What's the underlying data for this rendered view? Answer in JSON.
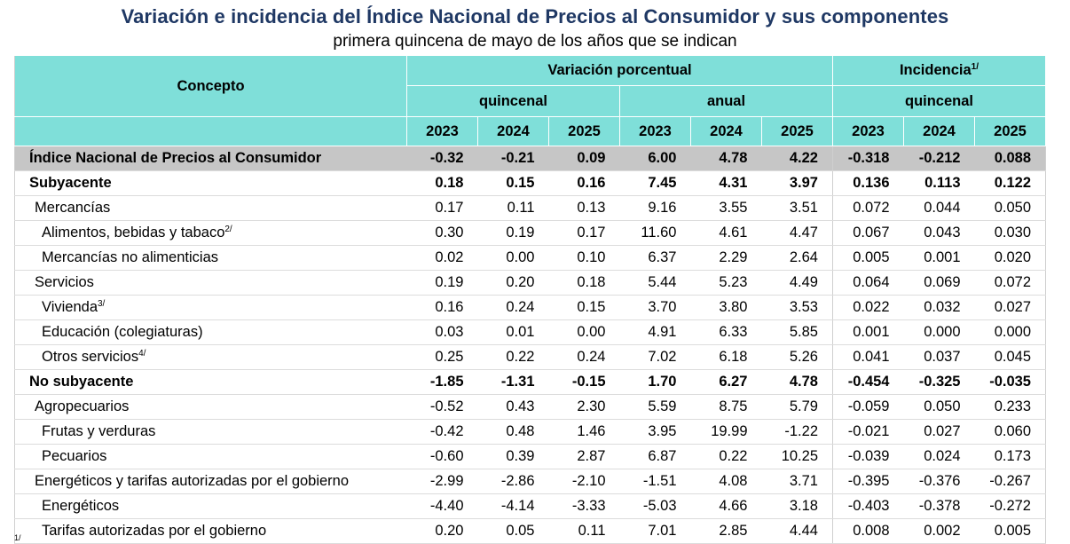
{
  "title": "Variación e incidencia del Índice Nacional de Precios al Consumidor y sus componentes",
  "subtitle": "primera quincena de mayo de los años que se indican",
  "header": {
    "concepto": "Concepto",
    "variacion": "Variación porcentual",
    "incidencia": "Incidencia",
    "incidencia_note": "1/",
    "quincenal": "quincenal",
    "anual": "anual",
    "quincenal_inc": "quincenal",
    "years": [
      "2023",
      "2024",
      "2025",
      "2023",
      "2024",
      "2025",
      "2023",
      "2024",
      "2025"
    ]
  },
  "rows": [
    {
      "label": "Índice Nacional de Precios al Consumidor",
      "note": "",
      "values": [
        "-0.32",
        "-0.21",
        "0.09",
        "6.00",
        "4.78",
        "4.22",
        "-0.318",
        "-0.212",
        "0.088"
      ]
    },
    {
      "label": "Subyacente",
      "note": "",
      "values": [
        "0.18",
        "0.15",
        "0.16",
        "7.45",
        "4.31",
        "3.97",
        "0.136",
        "0.113",
        "0.122"
      ]
    },
    {
      "label": "Mercancías",
      "note": "",
      "values": [
        "0.17",
        "0.11",
        "0.13",
        "9.16",
        "3.55",
        "3.51",
        "0.072",
        "0.044",
        "0.050"
      ]
    },
    {
      "label": "Alimentos, bebidas y tabaco",
      "note": "2/",
      "values": [
        "0.30",
        "0.19",
        "0.17",
        "11.60",
        "4.61",
        "4.47",
        "0.067",
        "0.043",
        "0.030"
      ]
    },
    {
      "label": "Mercancías no alimenticias",
      "note": "",
      "values": [
        "0.02",
        "0.00",
        "0.10",
        "6.37",
        "2.29",
        "2.64",
        "0.005",
        "0.001",
        "0.020"
      ]
    },
    {
      "label": "Servicios",
      "note": "",
      "values": [
        "0.19",
        "0.20",
        "0.18",
        "5.44",
        "5.23",
        "4.49",
        "0.064",
        "0.069",
        "0.072"
      ]
    },
    {
      "label": "Vivienda",
      "note": "3/",
      "values": [
        "0.16",
        "0.24",
        "0.15",
        "3.70",
        "3.80",
        "3.53",
        "0.022",
        "0.032",
        "0.027"
      ]
    },
    {
      "label": "Educación (colegiaturas)",
      "note": "",
      "values": [
        "0.03",
        "0.01",
        "0.00",
        "4.91",
        "6.33",
        "5.85",
        "0.001",
        "0.000",
        "0.000"
      ]
    },
    {
      "label": "Otros servicios",
      "note": "4/",
      "values": [
        "0.25",
        "0.22",
        "0.24",
        "7.02",
        "6.18",
        "5.26",
        "0.041",
        "0.037",
        "0.045"
      ]
    },
    {
      "label": "No subyacente",
      "note": "",
      "values": [
        "-1.85",
        "-1.31",
        "-0.15",
        "1.70",
        "6.27",
        "4.78",
        "-0.454",
        "-0.325",
        "-0.035"
      ]
    },
    {
      "label": "Agropecuarios",
      "note": "",
      "values": [
        "-0.52",
        "0.43",
        "2.30",
        "5.59",
        "8.75",
        "5.79",
        "-0.059",
        "0.050",
        "0.233"
      ]
    },
    {
      "label": "Frutas y verduras",
      "note": "",
      "values": [
        "-0.42",
        "0.48",
        "1.46",
        "3.95",
        "19.99",
        "-1.22",
        "-0.021",
        "0.027",
        "0.060"
      ]
    },
    {
      "label": "Pecuarios",
      "note": "",
      "values": [
        "-0.60",
        "0.39",
        "2.87",
        "6.87",
        "0.22",
        "10.25",
        "-0.039",
        "0.024",
        "0.173"
      ]
    },
    {
      "label": "Energéticos y tarifas autorizadas por el gobierno",
      "note": "",
      "values": [
        "-2.99",
        "-2.86",
        "-2.10",
        "-1.51",
        "4.08",
        "3.71",
        "-0.395",
        "-0.376",
        "-0.267"
      ]
    },
    {
      "label": "Energéticos",
      "note": "",
      "values": [
        "-4.40",
        "-4.14",
        "-3.33",
        "-5.03",
        "4.66",
        "3.18",
        "-0.403",
        "-0.378",
        "-0.272"
      ]
    },
    {
      "label": "Tarifas autorizadas por el gobierno",
      "note": "",
      "values": [
        "0.20",
        "0.05",
        "0.11",
        "7.01",
        "2.85",
        "4.44",
        "0.008",
        "0.002",
        "0.005"
      ]
    }
  ],
  "footnote_mark": "1/"
}
